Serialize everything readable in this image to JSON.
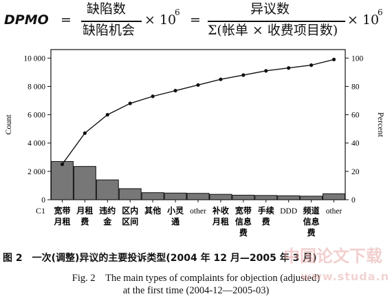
{
  "formula": {
    "lhs": "DPMO",
    "eq1": "=",
    "num1": "缺陷数",
    "den1": "缺陷机会",
    "times1": "× 10",
    "exp1": "6",
    "eq2": "=",
    "num2": "异议数",
    "den2": "Σ(帐单 × 收费项目数)",
    "times2": "× 10",
    "exp2": "6"
  },
  "chart_data": {
    "type": "bar",
    "row_label": "C1",
    "categories": [
      [
        "宽带",
        "月租"
      ],
      [
        "月租",
        "费"
      ],
      [
        "违约",
        "金"
      ],
      [
        "区内",
        "区间"
      ],
      [
        "其他"
      ],
      [
        "小灵",
        "通"
      ],
      [
        "other"
      ],
      [
        "补收",
        "月租"
      ],
      [
        "宽带",
        "信息",
        "费"
      ],
      [
        "手续",
        "费"
      ],
      [
        "DDD"
      ],
      [
        "频道",
        "信息",
        "费"
      ],
      [
        "other"
      ]
    ],
    "values": [
      2700,
      2350,
      1400,
      780,
      500,
      470,
      450,
      380,
      320,
      300,
      280,
      250,
      420
    ],
    "cumulative_percent": [
      25,
      47,
      60,
      68,
      73,
      77,
      81,
      85,
      88,
      91,
      93,
      95,
      99
    ],
    "ylabel_left": "Count",
    "ylabel_right": "Percent",
    "ylim_left": [
      0,
      10600
    ],
    "ylim_right": [
      0,
      106
    ],
    "yticks_left": [
      "0",
      "2 000",
      "4 000",
      "6 000",
      "8 000",
      "10 000"
    ],
    "yticks_left_values": [
      0,
      2000,
      4000,
      6000,
      8000,
      10000
    ],
    "yticks_right": [
      "0",
      "20",
      "40",
      "60",
      "80",
      "100"
    ],
    "yticks_right_values": [
      0,
      20,
      40,
      60,
      80,
      100
    ],
    "grid": false,
    "bar_color": "#777777",
    "line_color": "#111111"
  },
  "caption": {
    "cn": "图 2　一次(调整)异议的主要投诉类型(2004 年 12 月—2005 年 3 月)",
    "en_line1": "Fig. 2　The main types of complaints for objection (adjusted)",
    "en_line2": "at the first time (2004-12—2005-03)"
  },
  "watermark": {
    "text": "中国论文下载",
    "url": "www.studa.n"
  }
}
